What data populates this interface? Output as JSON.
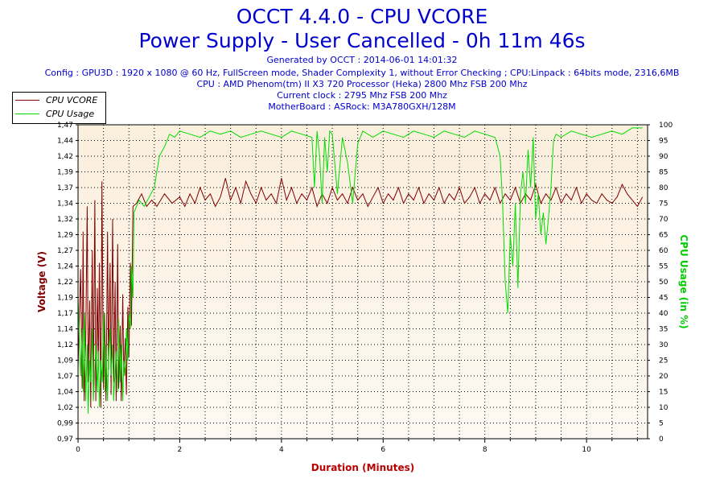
{
  "header": {
    "title": "OCCT 4.4.0 - CPU VCORE",
    "subtitle": "Power Supply - User Cancelled - 0h 11m 46s",
    "info_lines": [
      "Generated by OCCT : 2014-06-01 14:01:32",
      "Config : GPU3D : 1920 x 1080 @ 60 Hz, FullScreen mode, Shader Complexity 1, without Error Checking ; CPU:Linpack : 64bits mode, 2316,6MB",
      "CPU : AMD Phenom(tm) II X3 720 Processor (Heka) 2800 Mhz FSB 200 Mhz",
      "Current clock : 2795 Mhz FSB 200 Mhz",
      "MotherBoard : ASRock: M3A780GXH/128M"
    ]
  },
  "legend": {
    "items": [
      {
        "label": "CPU VCORE",
        "color": "#800000"
      },
      {
        "label": "CPU Usage",
        "color": "#00dd00"
      }
    ]
  },
  "chart_data": {
    "type": "line",
    "xlabel": "Duration (Minutes)",
    "ylabel": "Voltage (V)",
    "y2label": "CPU Usage (in %)",
    "xlim": [
      0,
      11.2
    ],
    "ylim": [
      0.97,
      1.47
    ],
    "y2lim": [
      0,
      100
    ],
    "x_ticks": [
      "0",
      "2",
      "4",
      "6",
      "8",
      "10"
    ],
    "y_ticks": [
      "0,97",
      "0,99",
      "1,02",
      "1,04",
      "1,07",
      "1,09",
      "1,12",
      "1,14",
      "1,17",
      "1,19",
      "1,22",
      "1,24",
      "1,27",
      "1,29",
      "1,32",
      "1,34",
      "1,37",
      "1,39",
      "1,42",
      "1,44",
      "1,47"
    ],
    "y2_ticks": [
      "0",
      "5",
      "10",
      "15",
      "20",
      "25",
      "30",
      "35",
      "40",
      "45",
      "50",
      "55",
      "60",
      "65",
      "70",
      "75",
      "80",
      "85",
      "90",
      "95",
      "100"
    ],
    "grid": true,
    "legend_position": "top-left, outside",
    "series": [
      {
        "name": "CPU VCORE",
        "color": "#800000",
        "points": [
          [
            0.0,
            1.08
          ],
          [
            0.05,
            1.24
          ],
          [
            0.08,
            1.05
          ],
          [
            0.1,
            1.3
          ],
          [
            0.12,
            1.03
          ],
          [
            0.15,
            1.12
          ],
          [
            0.18,
            1.34
          ],
          [
            0.2,
            1.06
          ],
          [
            0.23,
            1.19
          ],
          [
            0.25,
            1.02
          ],
          [
            0.28,
            1.27
          ],
          [
            0.3,
            1.05
          ],
          [
            0.33,
            1.35
          ],
          [
            0.35,
            1.03
          ],
          [
            0.38,
            1.21
          ],
          [
            0.4,
            1.08
          ],
          [
            0.42,
            1.25
          ],
          [
            0.45,
            1.02
          ],
          [
            0.47,
            1.38
          ],
          [
            0.5,
            1.05
          ],
          [
            0.52,
            1.17
          ],
          [
            0.55,
            1.03
          ],
          [
            0.58,
            1.3
          ],
          [
            0.6,
            1.08
          ],
          [
            0.63,
            1.25
          ],
          [
            0.65,
            1.04
          ],
          [
            0.68,
            1.32
          ],
          [
            0.7,
            1.06
          ],
          [
            0.73,
            1.22
          ],
          [
            0.75,
            1.03
          ],
          [
            0.78,
            1.28
          ],
          [
            0.8,
            1.05
          ],
          [
            0.83,
            1.15
          ],
          [
            0.85,
            1.03
          ],
          [
            0.88,
            1.2
          ],
          [
            0.9,
            1.07
          ],
          [
            0.93,
            1.13
          ],
          [
            0.95,
            1.04
          ],
          [
            0.98,
            1.18
          ],
          [
            1.0,
            1.1
          ],
          [
            1.03,
            1.25
          ],
          [
            1.05,
            1.15
          ],
          [
            1.08,
            1.34
          ],
          [
            1.15,
            1.345
          ],
          [
            1.25,
            1.36
          ],
          [
            1.35,
            1.34
          ],
          [
            1.45,
            1.35
          ],
          [
            1.55,
            1.34
          ],
          [
            1.7,
            1.36
          ],
          [
            1.85,
            1.345
          ],
          [
            2.0,
            1.355
          ],
          [
            2.1,
            1.34
          ],
          [
            2.2,
            1.36
          ],
          [
            2.3,
            1.345
          ],
          [
            2.4,
            1.37
          ],
          [
            2.5,
            1.35
          ],
          [
            2.6,
            1.36
          ],
          [
            2.7,
            1.34
          ],
          [
            2.8,
            1.355
          ],
          [
            2.9,
            1.385
          ],
          [
            3.0,
            1.35
          ],
          [
            3.1,
            1.37
          ],
          [
            3.2,
            1.345
          ],
          [
            3.3,
            1.38
          ],
          [
            3.4,
            1.36
          ],
          [
            3.5,
            1.345
          ],
          [
            3.6,
            1.37
          ],
          [
            3.7,
            1.35
          ],
          [
            3.8,
            1.36
          ],
          [
            3.9,
            1.345
          ],
          [
            4.0,
            1.385
          ],
          [
            4.1,
            1.35
          ],
          [
            4.2,
            1.37
          ],
          [
            4.3,
            1.345
          ],
          [
            4.4,
            1.36
          ],
          [
            4.5,
            1.35
          ],
          [
            4.6,
            1.37
          ],
          [
            4.7,
            1.34
          ],
          [
            4.8,
            1.36
          ],
          [
            4.9,
            1.345
          ],
          [
            5.0,
            1.37
          ],
          [
            5.1,
            1.35
          ],
          [
            5.2,
            1.36
          ],
          [
            5.3,
            1.345
          ],
          [
            5.4,
            1.37
          ],
          [
            5.5,
            1.35
          ],
          [
            5.6,
            1.36
          ],
          [
            5.7,
            1.34
          ],
          [
            5.8,
            1.355
          ],
          [
            5.9,
            1.37
          ],
          [
            6.0,
            1.345
          ],
          [
            6.1,
            1.36
          ],
          [
            6.2,
            1.35
          ],
          [
            6.3,
            1.37
          ],
          [
            6.4,
            1.345
          ],
          [
            6.5,
            1.36
          ],
          [
            6.6,
            1.35
          ],
          [
            6.7,
            1.37
          ],
          [
            6.8,
            1.345
          ],
          [
            6.9,
            1.36
          ],
          [
            7.0,
            1.35
          ],
          [
            7.1,
            1.37
          ],
          [
            7.2,
            1.345
          ],
          [
            7.3,
            1.36
          ],
          [
            7.4,
            1.35
          ],
          [
            7.5,
            1.37
          ],
          [
            7.6,
            1.345
          ],
          [
            7.7,
            1.355
          ],
          [
            7.8,
            1.37
          ],
          [
            7.9,
            1.345
          ],
          [
            8.0,
            1.36
          ],
          [
            8.1,
            1.35
          ],
          [
            8.2,
            1.37
          ],
          [
            8.3,
            1.345
          ],
          [
            8.4,
            1.36
          ],
          [
            8.5,
            1.35
          ],
          [
            8.6,
            1.37
          ],
          [
            8.7,
            1.345
          ],
          [
            8.8,
            1.36
          ],
          [
            8.9,
            1.35
          ],
          [
            9.0,
            1.375
          ],
          [
            9.1,
            1.345
          ],
          [
            9.2,
            1.36
          ],
          [
            9.3,
            1.35
          ],
          [
            9.4,
            1.37
          ],
          [
            9.5,
            1.345
          ],
          [
            9.6,
            1.36
          ],
          [
            9.7,
            1.35
          ],
          [
            9.8,
            1.37
          ],
          [
            9.9,
            1.345
          ],
          [
            10.0,
            1.36
          ],
          [
            10.1,
            1.35
          ],
          [
            10.2,
            1.345
          ],
          [
            10.3,
            1.36
          ],
          [
            10.4,
            1.35
          ],
          [
            10.5,
            1.345
          ],
          [
            10.6,
            1.355
          ],
          [
            10.7,
            1.375
          ],
          [
            10.8,
            1.36
          ],
          [
            10.9,
            1.35
          ],
          [
            11.0,
            1.34
          ],
          [
            11.1,
            1.355
          ]
        ]
      },
      {
        "name": "CPU Usage",
        "color": "#00dd00",
        "points": [
          [
            0.0,
            45
          ],
          [
            0.05,
            20
          ],
          [
            0.08,
            35
          ],
          [
            0.1,
            15
          ],
          [
            0.13,
            40
          ],
          [
            0.15,
            12
          ],
          [
            0.18,
            30
          ],
          [
            0.2,
            8
          ],
          [
            0.23,
            25
          ],
          [
            0.25,
            18
          ],
          [
            0.28,
            35
          ],
          [
            0.3,
            12
          ],
          [
            0.33,
            22
          ],
          [
            0.35,
            30
          ],
          [
            0.38,
            15
          ],
          [
            0.4,
            28
          ],
          [
            0.42,
            10
          ],
          [
            0.45,
            25
          ],
          [
            0.48,
            18
          ],
          [
            0.5,
            40
          ],
          [
            0.53,
            15
          ],
          [
            0.55,
            30
          ],
          [
            0.58,
            12
          ],
          [
            0.6,
            25
          ],
          [
            0.63,
            35
          ],
          [
            0.65,
            20
          ],
          [
            0.68,
            30
          ],
          [
            0.7,
            12
          ],
          [
            0.73,
            22
          ],
          [
            0.75,
            28
          ],
          [
            0.78,
            15
          ],
          [
            0.8,
            38
          ],
          [
            0.83,
            18
          ],
          [
            0.85,
            30
          ],
          [
            0.88,
            12
          ],
          [
            0.9,
            25
          ],
          [
            0.93,
            20
          ],
          [
            0.95,
            35
          ],
          [
            0.98,
            25
          ],
          [
            1.0,
            40
          ],
          [
            1.03,
            35
          ],
          [
            1.05,
            55
          ],
          [
            1.08,
            45
          ],
          [
            1.1,
            72
          ],
          [
            1.2,
            76
          ],
          [
            1.3,
            74
          ],
          [
            1.4,
            77
          ],
          [
            1.5,
            80
          ],
          [
            1.6,
            90
          ],
          [
            1.7,
            93
          ],
          [
            1.8,
            97
          ],
          [
            1.9,
            96
          ],
          [
            2.0,
            98
          ],
          [
            2.2,
            97
          ],
          [
            2.4,
            96
          ],
          [
            2.6,
            98
          ],
          [
            2.8,
            97
          ],
          [
            3.0,
            98
          ],
          [
            3.2,
            96
          ],
          [
            3.4,
            97
          ],
          [
            3.6,
            98
          ],
          [
            3.8,
            97
          ],
          [
            4.0,
            96
          ],
          [
            4.2,
            98
          ],
          [
            4.4,
            97
          ],
          [
            4.6,
            96
          ],
          [
            4.65,
            80
          ],
          [
            4.7,
            98
          ],
          [
            4.75,
            90
          ],
          [
            4.8,
            75
          ],
          [
            4.85,
            96
          ],
          [
            4.9,
            85
          ],
          [
            4.95,
            98
          ],
          [
            5.0,
            97
          ],
          [
            5.1,
            78
          ],
          [
            5.2,
            96
          ],
          [
            5.3,
            88
          ],
          [
            5.4,
            75
          ],
          [
            5.5,
            94
          ],
          [
            5.6,
            98
          ],
          [
            5.7,
            97
          ],
          [
            5.8,
            96
          ],
          [
            6.0,
            98
          ],
          [
            6.2,
            97
          ],
          [
            6.4,
            96
          ],
          [
            6.6,
            98
          ],
          [
            6.8,
            97
          ],
          [
            7.0,
            96
          ],
          [
            7.2,
            98
          ],
          [
            7.4,
            97
          ],
          [
            7.6,
            96
          ],
          [
            7.8,
            98
          ],
          [
            8.0,
            97
          ],
          [
            8.2,
            96
          ],
          [
            8.3,
            90
          ],
          [
            8.35,
            75
          ],
          [
            8.4,
            50
          ],
          [
            8.45,
            40
          ],
          [
            8.5,
            65
          ],
          [
            8.55,
            55
          ],
          [
            8.6,
            75
          ],
          [
            8.65,
            48
          ],
          [
            8.7,
            78
          ],
          [
            8.75,
            85
          ],
          [
            8.8,
            75
          ],
          [
            8.85,
            92
          ],
          [
            8.9,
            80
          ],
          [
            8.95,
            96
          ],
          [
            9.0,
            70
          ],
          [
            9.05,
            78
          ],
          [
            9.1,
            65
          ],
          [
            9.15,
            72
          ],
          [
            9.2,
            62
          ],
          [
            9.25,
            70
          ],
          [
            9.3,
            80
          ],
          [
            9.35,
            95
          ],
          [
            9.4,
            97
          ],
          [
            9.5,
            96
          ],
          [
            9.7,
            98
          ],
          [
            9.9,
            97
          ],
          [
            10.1,
            96
          ],
          [
            10.3,
            97
          ],
          [
            10.5,
            98
          ],
          [
            10.7,
            97
          ],
          [
            10.9,
            99
          ],
          [
            11.1,
            99
          ]
        ]
      }
    ]
  }
}
